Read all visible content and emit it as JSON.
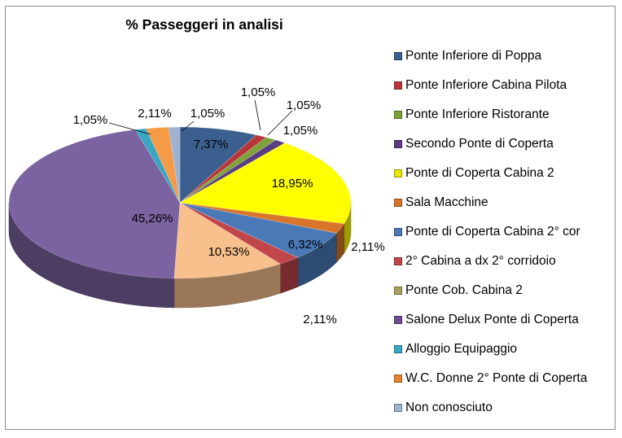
{
  "chart_data": {
    "type": "pie",
    "title": "% Passeggeri in analisi",
    "legend_position": "right",
    "slices": [
      {
        "name": "Ponte Inferiore di Poppa",
        "value": 7.37,
        "label": "7,37%",
        "color": "#3b5f8f"
      },
      {
        "name": "Ponte Inferiore Cabina Pilota",
        "value": 1.05,
        "label": "1,05%",
        "color": "#b8383a"
      },
      {
        "name": "Ponte Inferiore Ristorante",
        "value": 1.05,
        "label": "1,05%",
        "color": "#7ea23a"
      },
      {
        "name": "Secondo Ponte di Coperta",
        "value": 1.05,
        "label": "1,05%",
        "color": "#5a3c80"
      },
      {
        "name": "Ponte di Coperta Cabina 2",
        "value": 18.95,
        "label": "18,95%",
        "color": "#ffff00"
      },
      {
        "name": "Sala Macchine",
        "value": 2.11,
        "label": "2,11%",
        "color": "#d8752a"
      },
      {
        "name": "Ponte di Coperta Cabina 2° cor",
        "value": 6.32,
        "label": "6,32%",
        "color": "#4a79b8"
      },
      {
        "name": "2° Cabina a dx 2° corridoio",
        "value": 2.11,
        "label": "2,11%",
        "color": "#c0464a"
      },
      {
        "name": "Ponte Cob. Cabina 2",
        "value": 10.53,
        "label": "10,53%",
        "color": "#f8c08c"
      },
      {
        "name": "Salone Delux Ponte di Coperta",
        "value": 45.26,
        "label": "45,26%",
        "color": "#7b62a0"
      },
      {
        "name": "Alloggio Equipaggio",
        "value": 1.05,
        "label": "1,05%",
        "color": "#3aa6c2"
      },
      {
        "name": "W.C. Donne 2° Ponte di Coperta",
        "value": 2.11,
        "label": "2,11%",
        "color": "#f59a45"
      },
      {
        "name": "Non conosciuto",
        "value": 1.05,
        "label": "1,05%",
        "color": "#9fb2d4"
      }
    ]
  },
  "legend": {
    "items": [
      {
        "label": "Ponte Inferiore di Poppa",
        "color": "#3b5f8f"
      },
      {
        "label": "Ponte Inferiore Cabina Pilota",
        "color": "#b8383a"
      },
      {
        "label": "Ponte Inferiore Ristorante",
        "color": "#7ea23a"
      },
      {
        "label": "Secondo Ponte di Coperta",
        "color": "#5a3c80"
      },
      {
        "label": "Ponte di Coperta Cabina 2",
        "color": "#e8e800"
      },
      {
        "label": "Sala Macchine",
        "color": "#d8752a"
      },
      {
        "label": "Ponte di Coperta Cabina 2° cor",
        "color": "#4a79b8"
      },
      {
        "label": "2° Cabina a dx 2° corridoio",
        "color": "#c0464a"
      },
      {
        "label": "Ponte Cob. Cabina 2",
        "color": "#a8a060"
      },
      {
        "label": "Salone Delux Ponte di Coperta",
        "color": "#6a4c90"
      },
      {
        "label": "Alloggio Equipaggio",
        "color": "#3aa6c2"
      },
      {
        "label": "W.C. Donne 2° Ponte di Coperta",
        "color": "#e3852f"
      },
      {
        "label": "Non conosciuto",
        "color": "#9fb2d4"
      }
    ]
  }
}
